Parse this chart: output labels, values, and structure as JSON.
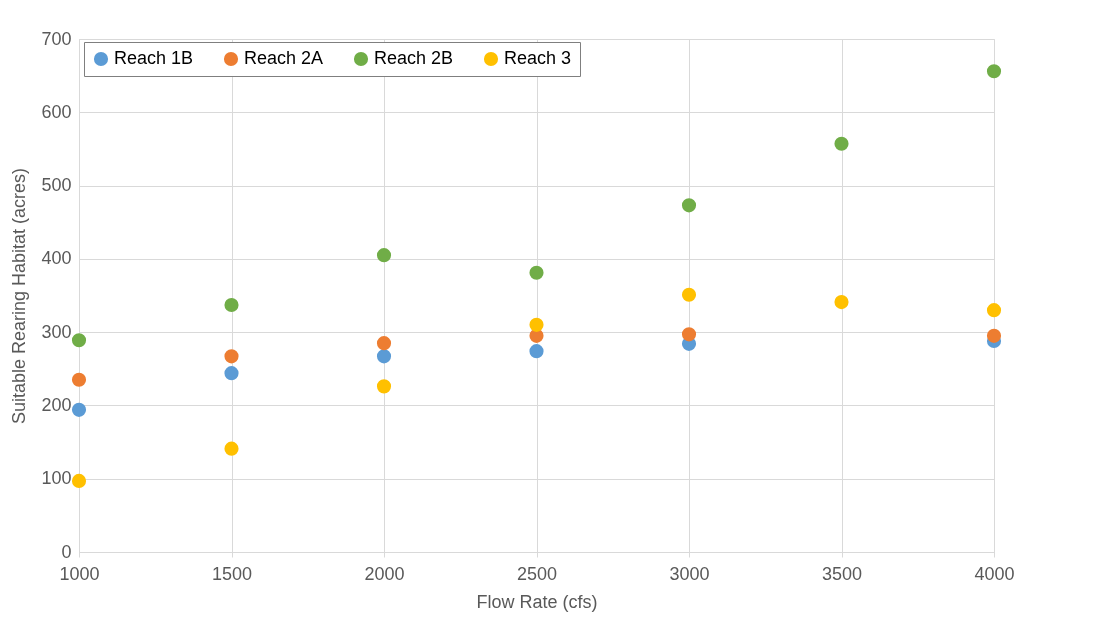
{
  "chart_data": {
    "type": "scatter",
    "xlabel": "Flow Rate (cfs)",
    "ylabel": "Suitable Rearing Habitat (acres)",
    "x": [
      1000,
      1500,
      2000,
      2500,
      3000,
      3500,
      4000
    ],
    "series": [
      {
        "name": "Reach 1B",
        "color": "#5b9bd5",
        "values": [
          194,
          244,
          267,
          274,
          284,
          null,
          288
        ]
      },
      {
        "name": "Reach 2A",
        "color": "#ed7d31",
        "values": [
          235,
          267,
          285,
          295,
          297,
          null,
          295
        ]
      },
      {
        "name": "Reach 2B",
        "color": "#70ad47",
        "values": [
          289,
          337,
          405,
          381,
          473,
          557,
          656
        ]
      },
      {
        "name": "Reach 3",
        "color": "#ffc000",
        "values": [
          97,
          141,
          226,
          310,
          351,
          341,
          330
        ]
      }
    ],
    "xlim": [
      1000,
      4000
    ],
    "xticks": [
      1000,
      1500,
      2000,
      2500,
      3000,
      3500,
      4000
    ],
    "ylim": [
      0,
      700
    ],
    "yticks": [
      0,
      100,
      200,
      300,
      400,
      500,
      600,
      700
    ],
    "grid": true,
    "legend": "top left",
    "marker": "circle"
  }
}
